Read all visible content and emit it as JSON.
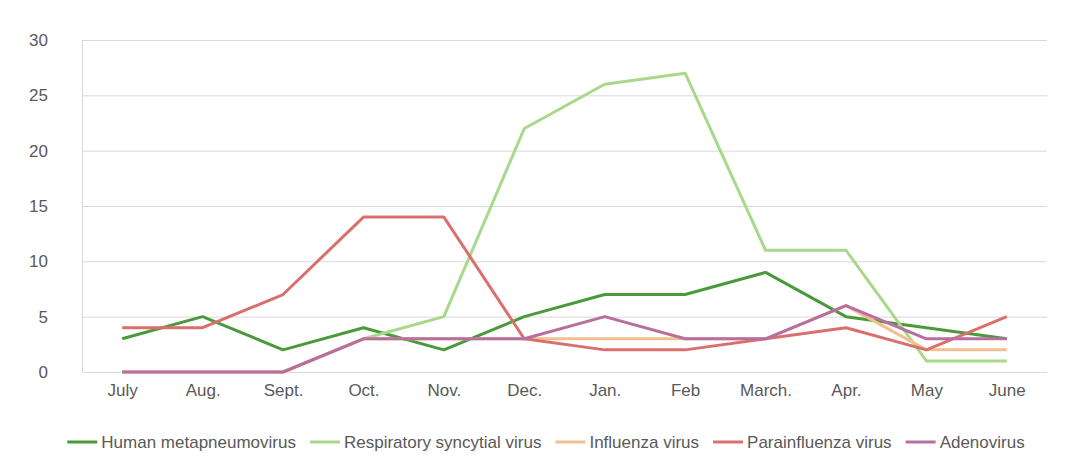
{
  "chart_data": {
    "type": "line",
    "categories": [
      "July",
      "Aug.",
      "Sept.",
      "Oct.",
      "Nov.",
      "Dec.",
      "Jan.",
      "Feb",
      "March.",
      "Apr.",
      "May",
      "June"
    ],
    "series": [
      {
        "name": "Human metapneumovirus",
        "color": "#4a9a3c",
        "values": [
          3,
          5,
          2,
          4,
          2,
          5,
          7,
          7,
          9,
          5,
          4,
          3
        ]
      },
      {
        "name": "Respiratory syncytial virus",
        "color": "#a8d98a",
        "values": [
          0,
          0,
          0,
          3,
          5,
          22,
          26,
          27,
          11,
          11,
          1,
          1
        ]
      },
      {
        "name": "Influenza virus",
        "color": "#f2c08f",
        "values": [
          0,
          0,
          0,
          3,
          3,
          3,
          3,
          3,
          3,
          6,
          2,
          2
        ]
      },
      {
        "name": "Parainfluenza virus",
        "color": "#d9706e",
        "values": [
          4,
          4,
          7,
          14,
          14,
          3,
          2,
          2,
          3,
          4,
          2,
          5
        ]
      },
      {
        "name": "Adenovirus",
        "color": "#b86fa0",
        "values": [
          0,
          0,
          0,
          3,
          3,
          3,
          5,
          3,
          3,
          6,
          3,
          3
        ]
      }
    ],
    "ylim": [
      0,
      30
    ],
    "yticks": [
      0,
      5,
      10,
      15,
      20,
      25,
      30
    ],
    "grid": true,
    "legend": "bottom"
  }
}
